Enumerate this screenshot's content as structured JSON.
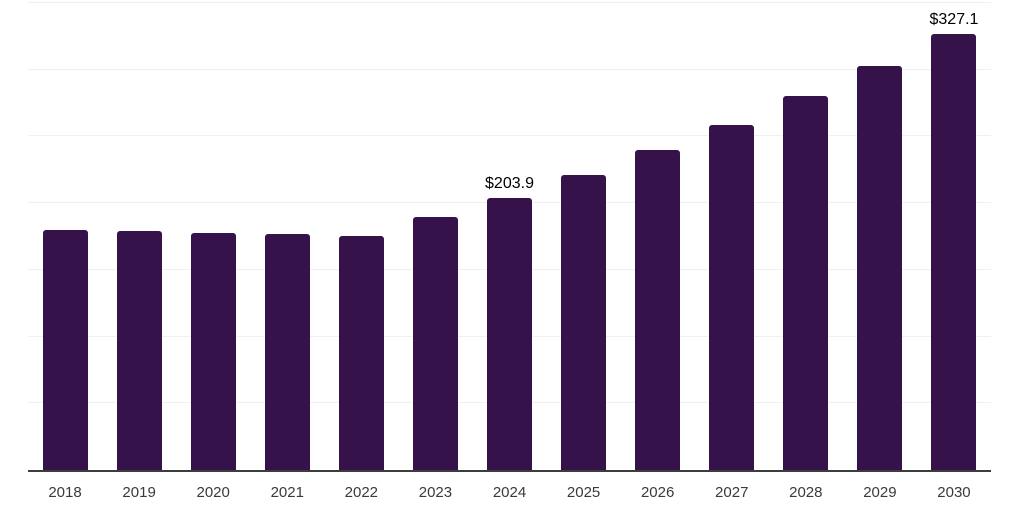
{
  "chart_data": {
    "type": "bar",
    "title": "",
    "xlabel": "",
    "ylabel": "",
    "legend": "none",
    "grid": "horizontal",
    "categories": [
      "2018",
      "2019",
      "2020",
      "2021",
      "2022",
      "2023",
      "2024",
      "2025",
      "2026",
      "2027",
      "2028",
      "2029",
      "2030"
    ],
    "values": [
      180.1,
      179.2,
      177.6,
      176.8,
      175.3,
      189.4,
      203.9,
      221.3,
      239.5,
      258.9,
      280.3,
      303.1,
      327.1
    ],
    "data_labels": {
      "2024": "$203.9",
      "2030": "$327.1"
    },
    "ylim": [
      0,
      350
    ],
    "grid_step": 50,
    "colors": {
      "bar": "#36124B",
      "axis_line": "#3d3d3d",
      "gridline": "#f0f0f0",
      "data_label": "#000000",
      "tick_label": "#3a3a3a",
      "background": "#ffffff"
    }
  }
}
